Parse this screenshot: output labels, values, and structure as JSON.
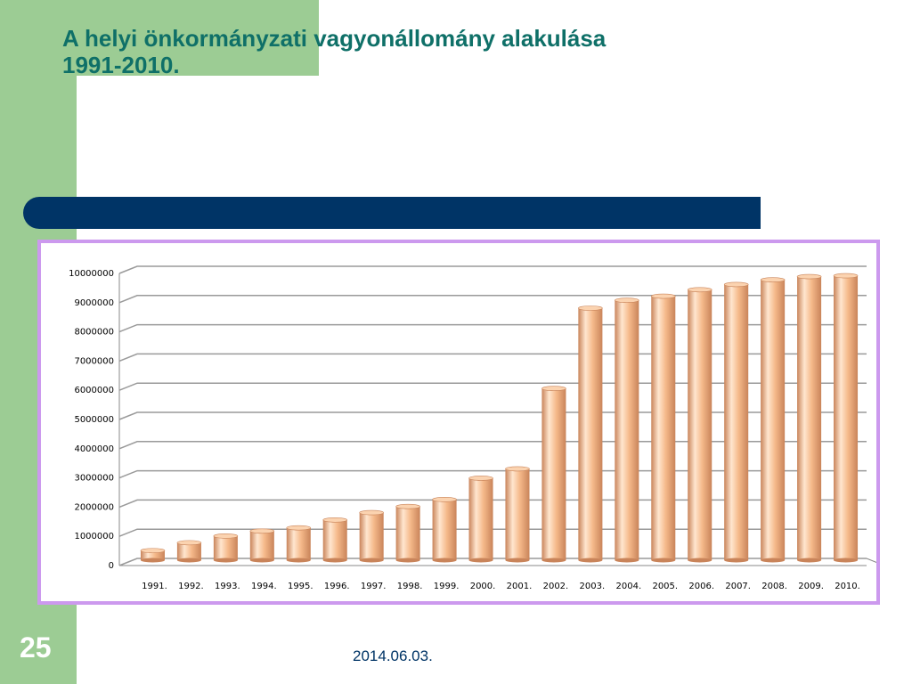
{
  "slide": {
    "title": "A helyi önkormányzati vagyonállomány alakulása\n1991-2010.",
    "number": "25",
    "date": "2014.06.03."
  },
  "colors": {
    "background_accent": "#9ccc94",
    "title": "#0f7068",
    "bar_band": "#003466",
    "chart_border": "#cc99ee",
    "bar_fill": "#f5b98a",
    "bar_highlight": "#ffe6cf",
    "bar_shade": "#c9845a"
  },
  "chart_data": {
    "type": "bar",
    "style": "3d-cylinder",
    "categories": [
      "1991.",
      "1992.",
      "1993.",
      "1994.",
      "1995.",
      "1996.",
      "1997.",
      "1998.",
      "1999.",
      "2000.",
      "2001.",
      "2002.",
      "2003.",
      "2004.",
      "2005.",
      "2006.",
      "2007.",
      "2008.",
      "2009.",
      "2010."
    ],
    "values": [
      450000,
      720000,
      950000,
      1120000,
      1230000,
      1500000,
      1750000,
      1960000,
      2200000,
      2930000,
      3250000,
      6000000,
      8750000,
      9020000,
      9160000,
      9380000,
      9560000,
      9720000,
      9830000,
      9860000
    ],
    "ylim": [
      0,
      10000000
    ],
    "yticks": [
      "0",
      "1000000",
      "2000000",
      "3000000",
      "4000000",
      "5000000",
      "6000000",
      "7000000",
      "8000000",
      "9000000",
      "10000000"
    ],
    "grid": true,
    "legend": "none"
  }
}
